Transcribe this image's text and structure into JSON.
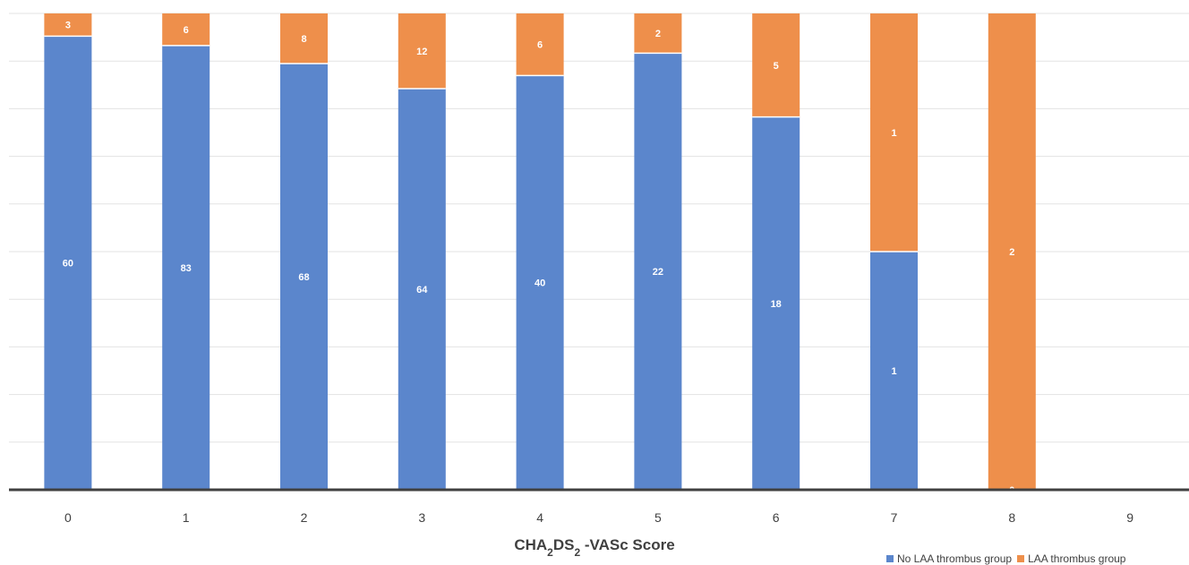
{
  "chart_data": {
    "type": "bar",
    "stacked": "percent",
    "categories": [
      "0",
      "1",
      "2",
      "3",
      "4",
      "5",
      "6",
      "7",
      "8",
      "9"
    ],
    "series": [
      {
        "name": "No LAA thrombus group",
        "color": "#5b86cc",
        "values": [
          60,
          83,
          68,
          64,
          40,
          22,
          18,
          1,
          0,
          0
        ]
      },
      {
        "name": "LAA thrombus group",
        "color": "#ee8f4b",
        "values": [
          3,
          6,
          8,
          12,
          6,
          2,
          5,
          1,
          2,
          0
        ]
      }
    ],
    "xlabel": {
      "main": "CHA",
      "sub1": "2",
      "mid": "DS",
      "sub2": "2",
      "tail": " -VASc Score"
    },
    "gridlines": true,
    "legend_position": "bottom-right"
  }
}
